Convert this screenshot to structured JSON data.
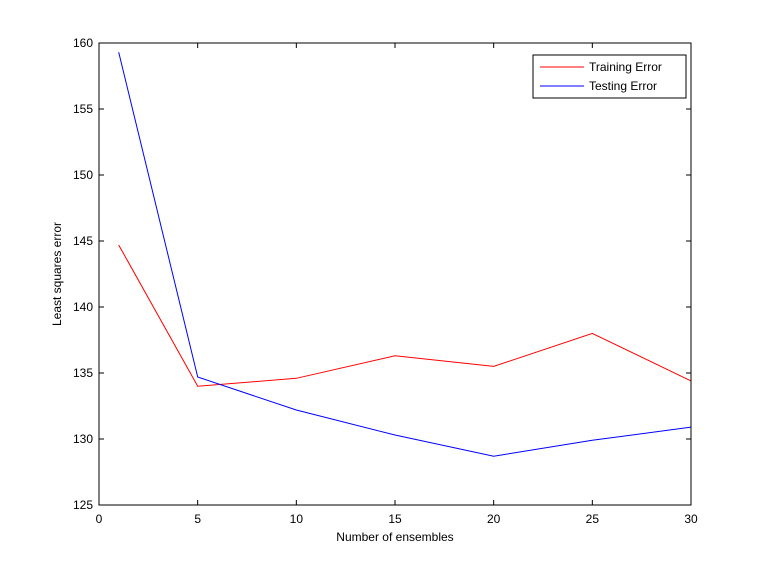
{
  "chart_data": {
    "type": "line",
    "title": "",
    "xlabel": "Number of ensembles",
    "ylabel": "Least squares error",
    "xlim": [
      0,
      30
    ],
    "ylim": [
      125,
      160
    ],
    "xticks": [
      0,
      5,
      10,
      15,
      20,
      25,
      30
    ],
    "yticks": [
      125,
      130,
      135,
      140,
      145,
      150,
      155,
      160
    ],
    "grid": false,
    "legend_position": "top-right",
    "x": [
      1,
      5,
      10,
      15,
      20,
      25,
      30
    ],
    "series": [
      {
        "name": "Training Error",
        "color": "#ff0000",
        "values": [
          144.7,
          134.0,
          134.6,
          136.3,
          135.5,
          138.0,
          134.4
        ]
      },
      {
        "name": "Testing Error",
        "color": "#0000ff",
        "values": [
          159.3,
          134.7,
          132.2,
          130.3,
          128.7,
          129.9,
          130.9
        ]
      }
    ]
  }
}
